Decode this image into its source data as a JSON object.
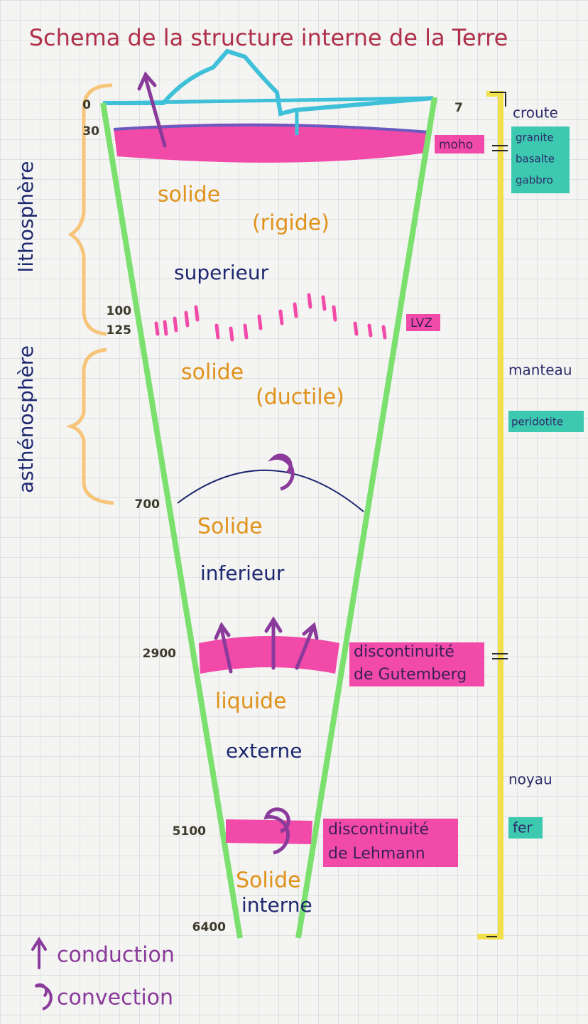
{
  "title": "Schema de la structure interne de la Terre",
  "side_labels": {
    "lithosphere": "lithosphère",
    "asthenosphere": "asthénosphère"
  },
  "depths": [
    "0",
    "30",
    "100",
    "125",
    "700",
    "2900",
    "5100",
    "6400",
    "7"
  ],
  "layers": {
    "upper_mantle_top": [
      "solide",
      "(rigide)"
    ],
    "upper_mantle_name": "superieur",
    "upper_mantle_bottom": [
      "solide",
      "(ductile)"
    ],
    "lower_mantle": [
      "Solide",
      "inferieur"
    ],
    "outer_core": [
      "liquide",
      "externe"
    ],
    "inner_core": [
      "Solide",
      "interne"
    ]
  },
  "boundaries": {
    "moho": "moho",
    "lvz": "LVZ",
    "gutenberg": [
      "discontinuité",
      "de Gutemberg"
    ],
    "lehmann": [
      "discontinuité",
      "de Lehmann"
    ]
  },
  "right_labels": {
    "crust": "croute",
    "crust_rocks": [
      "granite",
      "basalte",
      "gabbro"
    ],
    "mantle": "manteau",
    "mantle_rock": "peridotite",
    "core": "noyau",
    "core_metal": "fer"
  },
  "legend": [
    "conduction",
    "convection"
  ]
}
